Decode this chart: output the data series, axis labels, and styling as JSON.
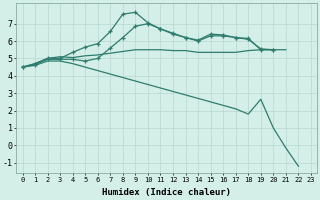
{
  "xlabel": "Humidex (Indice chaleur)",
  "bg_color": "#d4eee8",
  "grid_color": "#b8d8d0",
  "line_color": "#2e7d6e",
  "xlim": [
    -0.5,
    23.5
  ],
  "ylim": [
    -1.6,
    8.2
  ],
  "xticks": [
    0,
    1,
    2,
    3,
    4,
    5,
    6,
    7,
    8,
    9,
    10,
    11,
    12,
    13,
    14,
    15,
    16,
    17,
    18,
    19,
    20,
    21,
    22,
    23
  ],
  "yticks": [
    -1,
    0,
    1,
    2,
    3,
    4,
    5,
    6,
    7
  ],
  "line1_x": [
    0,
    1,
    2,
    3,
    4,
    5,
    6,
    7,
    8,
    9,
    10,
    11,
    12,
    13,
    14,
    15,
    16,
    17,
    18,
    19,
    20
  ],
  "line1_y": [
    4.5,
    4.7,
    5.0,
    5.0,
    5.35,
    5.65,
    5.85,
    6.55,
    7.55,
    7.65,
    7.05,
    6.7,
    6.45,
    6.2,
    6.05,
    6.4,
    6.35,
    6.2,
    6.15,
    5.5,
    5.5
  ],
  "line2_x": [
    0,
    1,
    2,
    3,
    4,
    5,
    6,
    7,
    8,
    9,
    10,
    11,
    12,
    13,
    14,
    15,
    16,
    17,
    18,
    19,
    20,
    21,
    22,
    23
  ],
  "line2_y": [
    4.5,
    4.65,
    4.95,
    4.95,
    4.95,
    4.85,
    5.0,
    5.6,
    6.2,
    6.85,
    7.0,
    6.7,
    6.4,
    6.2,
    6.0,
    6.3,
    6.3,
    6.2,
    6.1,
    5.55,
    5.5,
    null,
    null,
    null
  ],
  "line3_x": [
    0,
    1,
    2,
    3,
    4,
    5,
    6,
    7,
    8,
    9,
    10,
    11,
    12,
    13,
    14,
    15,
    16,
    17,
    18,
    19,
    20,
    21
  ],
  "line3_y": [
    4.5,
    4.7,
    5.0,
    5.1,
    5.05,
    5.15,
    5.2,
    5.3,
    5.4,
    5.5,
    5.5,
    5.5,
    5.45,
    5.45,
    5.35,
    5.35,
    5.35,
    5.35,
    5.45,
    5.5,
    5.5,
    5.5
  ],
  "line4_x": [
    0,
    1,
    2,
    3,
    4,
    5,
    6,
    7,
    8,
    9,
    10,
    11,
    12,
    13,
    14,
    15,
    16,
    17,
    18,
    19,
    20,
    21,
    22,
    23
  ],
  "line4_y": [
    4.5,
    4.6,
    4.85,
    4.85,
    4.7,
    4.5,
    4.3,
    4.1,
    3.9,
    3.7,
    3.5,
    3.3,
    3.1,
    2.9,
    2.7,
    2.5,
    2.3,
    2.1,
    1.8,
    2.65,
    1.0,
    -0.15,
    -1.2,
    null
  ]
}
